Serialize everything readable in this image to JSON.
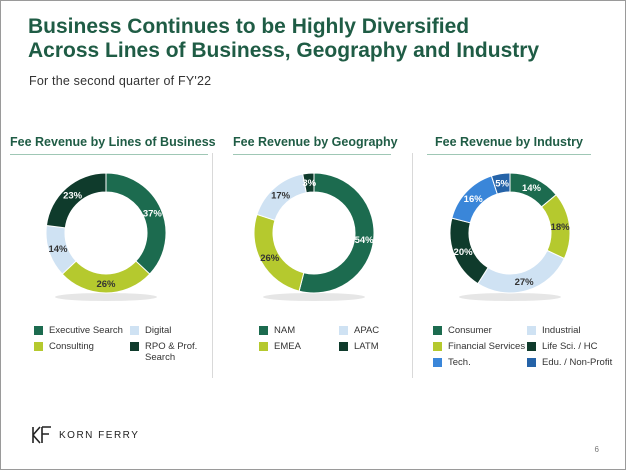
{
  "slide": {
    "title_line1": "Business Continues to be Highly Diversified",
    "title_line2": "Across Lines of Business, Geography and Industry",
    "subtitle": "For the second quarter of FY'22",
    "page_number": "6",
    "logo_text": "KORN FERRY"
  },
  "chart_data": [
    {
      "type": "pie",
      "donut": true,
      "title": "Fee Revenue by Lines of Business",
      "categories": [
        "Executive Search",
        "Consulting",
        "Digital",
        "RPO & Prof. Search"
      ],
      "values": [
        37,
        26,
        14,
        23
      ],
      "value_labels": [
        "37%",
        "26%",
        "14%",
        "23%"
      ],
      "colors": [
        "#1c6b4f",
        "#b5c92e",
        "#cfe2f3",
        "#0f3b2c"
      ],
      "label_colors": [
        "#ffffff",
        "#333333",
        "#333333",
        "#ffffff"
      ],
      "legend": [
        {
          "label": "Executive Search",
          "color": "#1c6b4f"
        },
        {
          "label": "Digital",
          "color": "#cfe2f3"
        },
        {
          "label": "Consulting",
          "color": "#b5c92e"
        },
        {
          "label": "RPO & Prof. Search",
          "color": "#0f3b2c"
        }
      ]
    },
    {
      "type": "pie",
      "donut": true,
      "title": "Fee Revenue by Geography",
      "categories": [
        "NAM",
        "EMEA",
        "APAC",
        "LATM"
      ],
      "values": [
        54,
        26,
        17,
        3
      ],
      "value_labels": [
        "54%",
        "26%",
        "17%",
        "3%"
      ],
      "colors": [
        "#1c6b4f",
        "#b5c92e",
        "#cfe2f3",
        "#0f3b2c"
      ],
      "label_colors": [
        "#ffffff",
        "#333333",
        "#333333",
        "#ffffff"
      ],
      "legend": [
        {
          "label": "NAM",
          "color": "#1c6b4f"
        },
        {
          "label": "APAC",
          "color": "#cfe2f3"
        },
        {
          "label": "EMEA",
          "color": "#b5c92e"
        },
        {
          "label": "LATM",
          "color": "#0f3b2c"
        }
      ]
    },
    {
      "type": "pie",
      "donut": true,
      "title": "Fee Revenue by Industry",
      "categories": [
        "Consumer",
        "Financial Services",
        "Industrial",
        "Life Sci. / HC",
        "Tech.",
        "Edu. / Non-Profit"
      ],
      "values": [
        14,
        18,
        27,
        20,
        16,
        5
      ],
      "value_labels": [
        "14%",
        "18%",
        "27%",
        "20%",
        "16%",
        "5%"
      ],
      "colors": [
        "#1c6b4f",
        "#b5c92e",
        "#cfe2f3",
        "#0f3b2c",
        "#3a86d9",
        "#2563a8"
      ],
      "label_colors": [
        "#ffffff",
        "#333333",
        "#333333",
        "#ffffff",
        "#ffffff",
        "#ffffff"
      ],
      "legend": [
        {
          "label": "Consumer",
          "color": "#1c6b4f"
        },
        {
          "label": "Industrial",
          "color": "#cfe2f3"
        },
        {
          "label": "Financial Services",
          "color": "#b5c92e"
        },
        {
          "label": "Life Sci. / HC",
          "color": "#0f3b2c"
        },
        {
          "label": "Tech.",
          "color": "#3a86d9"
        },
        {
          "label": "Edu. / Non-Profit",
          "color": "#2563a8"
        }
      ]
    }
  ]
}
